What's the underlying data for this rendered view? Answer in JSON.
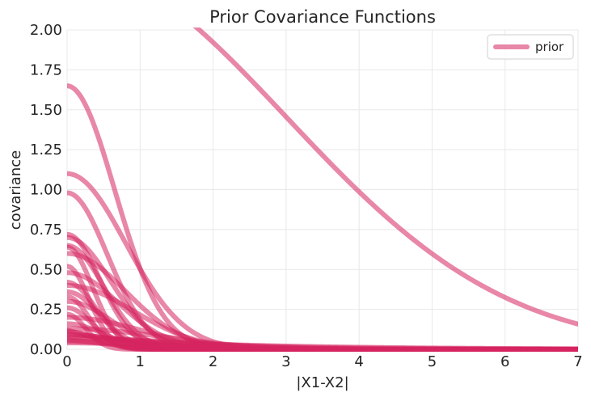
{
  "chart_data": {
    "type": "line",
    "title": "Prior Covariance Functions",
    "xlabel": "|X1-X2|",
    "ylabel": "covariance",
    "xlim": [
      0,
      7
    ],
    "ylim": [
      0,
      2.0
    ],
    "x_ticks": [
      "0",
      "1",
      "2",
      "3",
      "4",
      "5",
      "6",
      "7"
    ],
    "y_ticks": [
      "0.00",
      "0.25",
      "0.50",
      "0.75",
      "1.00",
      "1.25",
      "1.50",
      "1.75",
      "2.00"
    ],
    "grid": true,
    "legend": {
      "position": "top-right",
      "entries": [
        "prior"
      ]
    },
    "series_color": "#d6245e",
    "series_opacity": 0.55,
    "series": [
      {
        "name": "prior",
        "kernel": "expquad",
        "amplitude": 2.4,
        "lengthscale": 3.0
      },
      {
        "kernel": "expquad",
        "amplitude": 1.65,
        "lengthscale": 0.65
      },
      {
        "kernel": "expquad",
        "amplitude": 1.1,
        "lengthscale": 0.8
      },
      {
        "kernel": "expquad",
        "amplitude": 0.98,
        "lengthscale": 0.55
      },
      {
        "kernel": "expquad",
        "amplitude": 0.72,
        "lengthscale": 0.45
      },
      {
        "kernel": "expquad",
        "amplitude": 0.7,
        "lengthscale": 0.6
      },
      {
        "kernel": "expquad",
        "amplitude": 0.65,
        "lengthscale": 0.5
      },
      {
        "kernel": "expquad",
        "amplitude": 0.64,
        "lengthscale": 0.35
      },
      {
        "kernel": "expquad",
        "amplitude": 0.6,
        "lengthscale": 0.8
      },
      {
        "kernel": "expquad",
        "amplitude": 0.52,
        "lengthscale": 0.3
      },
      {
        "kernel": "expquad",
        "amplitude": 0.48,
        "lengthscale": 0.7
      },
      {
        "kernel": "expquad",
        "amplitude": 0.42,
        "lengthscale": 0.4
      },
      {
        "kernel": "expquad",
        "amplitude": 0.4,
        "lengthscale": 0.9
      },
      {
        "kernel": "expquad",
        "amplitude": 0.36,
        "lengthscale": 0.45
      },
      {
        "kernel": "expquad",
        "amplitude": 0.33,
        "lengthscale": 0.3
      },
      {
        "kernel": "expquad",
        "amplitude": 0.3,
        "lengthscale": 0.6
      },
      {
        "kernel": "expquad",
        "amplitude": 0.26,
        "lengthscale": 0.35
      },
      {
        "kernel": "expquad",
        "amplitude": 0.22,
        "lengthscale": 0.25
      },
      {
        "kernel": "expquad",
        "amplitude": 0.2,
        "lengthscale": 1.0
      },
      {
        "kernel": "expquad",
        "amplitude": 0.16,
        "lengthscale": 0.5
      },
      {
        "kernel": "expquad",
        "amplitude": 0.13,
        "lengthscale": 1.3
      },
      {
        "kernel": "expquad",
        "amplitude": 0.11,
        "lengthscale": 0.4
      },
      {
        "kernel": "expquad",
        "amplitude": 0.09,
        "lengthscale": 0.8
      },
      {
        "kernel": "expquad",
        "amplitude": 0.07,
        "lengthscale": 1.6
      },
      {
        "kernel": "expquad",
        "amplitude": 0.05,
        "lengthscale": 0.6
      },
      {
        "kernel": "expquad",
        "amplitude": 0.04,
        "lengthscale": 1.2
      },
      {
        "kernel": "exp",
        "amplitude": 0.12,
        "lengthscale": 1.0
      },
      {
        "kernel": "exp",
        "amplitude": 0.1,
        "lengthscale": 1.6
      },
      {
        "kernel": "exp",
        "amplitude": 0.08,
        "lengthscale": 2.2
      },
      {
        "kernel": "exp",
        "amplitude": 0.06,
        "lengthscale": 1.3
      }
    ]
  }
}
